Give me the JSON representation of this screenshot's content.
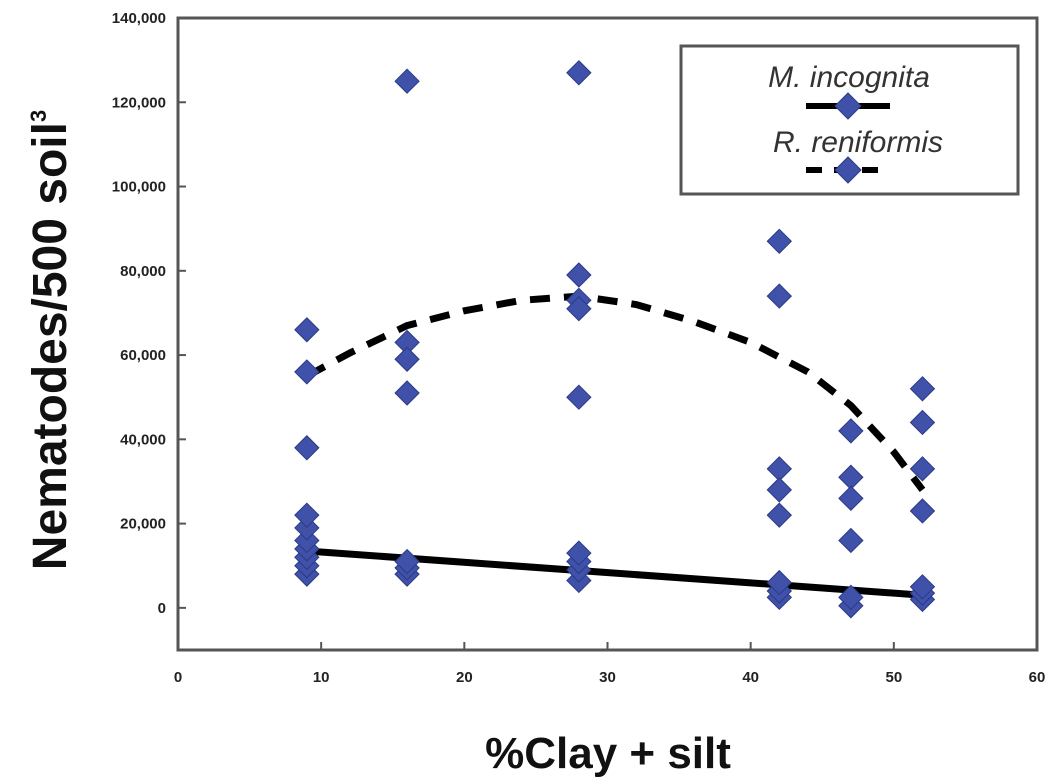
{
  "chart_data": {
    "type": "scatter",
    "title": "",
    "xlabel": "%Clay + silt",
    "ylabel": "Nematodes/500 soil",
    "ylabel_superscript": "3",
    "xlim": [
      0,
      60
    ],
    "ylim": [
      -10000,
      140000
    ],
    "x_ticks": [
      0,
      10,
      20,
      30,
      40,
      50,
      60
    ],
    "x_tick_labels": [
      "0",
      "10",
      "20",
      "30",
      "40",
      "50",
      "60"
    ],
    "y_ticks": [
      0,
      20000,
      40000,
      60000,
      80000,
      100000,
      120000,
      140000
    ],
    "y_tick_labels": [
      "0",
      "20,000",
      "40,000",
      "60,000",
      "80,000",
      "100,000",
      "120,000",
      "140,000"
    ],
    "grid": false,
    "legend_position": "top-right",
    "colors": {
      "marker": "#3f51a8",
      "line": "#000000"
    },
    "series": [
      {
        "name": "M. incognita",
        "line_style": "solid",
        "points": [
          {
            "x": 9,
            "y": 8000
          },
          {
            "x": 9,
            "y": 10000
          },
          {
            "x": 9,
            "y": 12000
          },
          {
            "x": 9,
            "y": 14000
          },
          {
            "x": 9,
            "y": 16000
          },
          {
            "x": 9,
            "y": 19000
          },
          {
            "x": 16,
            "y": 8000
          },
          {
            "x": 16,
            "y": 9500
          },
          {
            "x": 16,
            "y": 11000
          },
          {
            "x": 28,
            "y": 6500
          },
          {
            "x": 28,
            "y": 9000
          },
          {
            "x": 28,
            "y": 11000
          },
          {
            "x": 28,
            "y": 13000
          },
          {
            "x": 42,
            "y": 2500
          },
          {
            "x": 42,
            "y": 4000
          },
          {
            "x": 42,
            "y": 6000
          },
          {
            "x": 47,
            "y": 500
          },
          {
            "x": 47,
            "y": 2500
          },
          {
            "x": 52,
            "y": 2000
          },
          {
            "x": 52,
            "y": 3500
          },
          {
            "x": 52,
            "y": 5000
          }
        ],
        "trend": [
          {
            "x": 9,
            "y": 13500
          },
          {
            "x": 52,
            "y": 3000
          }
        ]
      },
      {
        "name": "R. reniformis",
        "line_style": "dashed",
        "points": [
          {
            "x": 9,
            "y": 66000
          },
          {
            "x": 9,
            "y": 56000
          },
          {
            "x": 9,
            "y": 38000
          },
          {
            "x": 9,
            "y": 22000
          },
          {
            "x": 16,
            "y": 125000
          },
          {
            "x": 16,
            "y": 63000
          },
          {
            "x": 16,
            "y": 59000
          },
          {
            "x": 16,
            "y": 51000
          },
          {
            "x": 28,
            "y": 127000
          },
          {
            "x": 28,
            "y": 79000
          },
          {
            "x": 28,
            "y": 73000
          },
          {
            "x": 28,
            "y": 71000
          },
          {
            "x": 28,
            "y": 50000
          },
          {
            "x": 42,
            "y": 87000
          },
          {
            "x": 42,
            "y": 74000
          },
          {
            "x": 42,
            "y": 33000
          },
          {
            "x": 42,
            "y": 28000
          },
          {
            "x": 42,
            "y": 22000
          },
          {
            "x": 47,
            "y": 42000
          },
          {
            "x": 47,
            "y": 31000
          },
          {
            "x": 47,
            "y": 26000
          },
          {
            "x": 47,
            "y": 16000
          },
          {
            "x": 52,
            "y": 52000
          },
          {
            "x": 52,
            "y": 44000
          },
          {
            "x": 52,
            "y": 33000
          },
          {
            "x": 52,
            "y": 23000
          }
        ],
        "trend": [
          {
            "x": 9,
            "y": 55000
          },
          {
            "x": 12,
            "y": 60500
          },
          {
            "x": 16,
            "y": 67000
          },
          {
            "x": 20,
            "y": 70500
          },
          {
            "x": 24,
            "y": 73000
          },
          {
            "x": 28,
            "y": 74000
          },
          {
            "x": 32,
            "y": 72000
          },
          {
            "x": 36,
            "y": 68000
          },
          {
            "x": 40,
            "y": 63000
          },
          {
            "x": 44,
            "y": 56000
          },
          {
            "x": 47,
            "y": 48000
          },
          {
            "x": 50,
            "y": 37000
          },
          {
            "x": 52,
            "y": 28000
          }
        ]
      }
    ]
  }
}
